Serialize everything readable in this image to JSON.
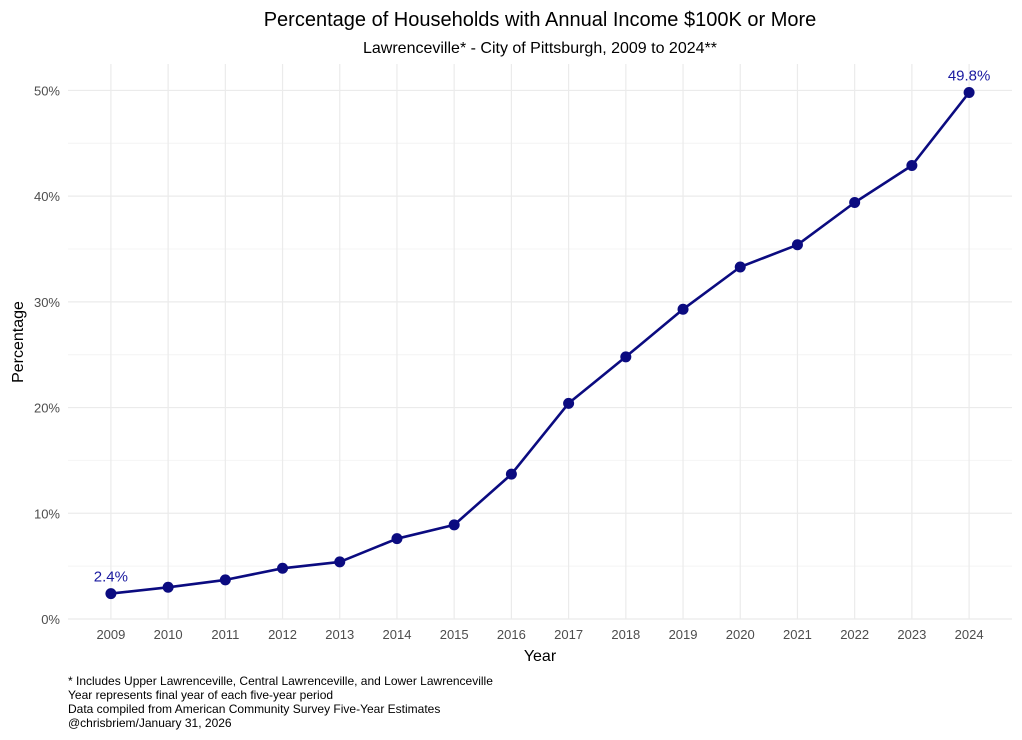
{
  "chart_data": {
    "type": "line",
    "title": "Percentage of Households with Annual Income $100K or More",
    "subtitle": "Lawrenceville* - City of Pittsburgh, 2009 to 2024**",
    "xlabel": "Year",
    "ylabel": "Percentage",
    "x": [
      2009,
      2010,
      2011,
      2012,
      2013,
      2014,
      2015,
      2016,
      2017,
      2018,
      2019,
      2020,
      2021,
      2022,
      2023,
      2024
    ],
    "series": [
      {
        "values": [
          2.4,
          3.0,
          3.7,
          4.8,
          5.4,
          7.6,
          8.9,
          13.7,
          20.4,
          24.8,
          29.3,
          33.3,
          35.4,
          39.4,
          42.9,
          49.8
        ]
      }
    ],
    "annotations": [
      {
        "x": 2009,
        "y": 2.4,
        "text": "2.4%"
      },
      {
        "x": 2024,
        "y": 49.8,
        "text": "49.8%"
      }
    ],
    "ylim": [
      0,
      52.5
    ],
    "xlim": [
      2008.25,
      2024.75
    ],
    "yticks": [
      0,
      10,
      20,
      30,
      40,
      50
    ],
    "ytick_labels": [
      "0%",
      "10%",
      "20%",
      "30%",
      "40%",
      "50%"
    ],
    "grid": true,
    "line_color": "#0b0b80",
    "label_color": "#1a1aa0",
    "grid_color": "#ebebeb",
    "grid_minor_color": "#f4f4f4",
    "caption": [
      "* Includes Upper Lawrenceville, Central Lawrenceville, and Lower Lawrenceville",
      "Year represents final year of each five-year period",
      "Data compiled from American Community Survey Five-Year Estimates",
      "@chrisbriem/January 31, 2026"
    ]
  }
}
